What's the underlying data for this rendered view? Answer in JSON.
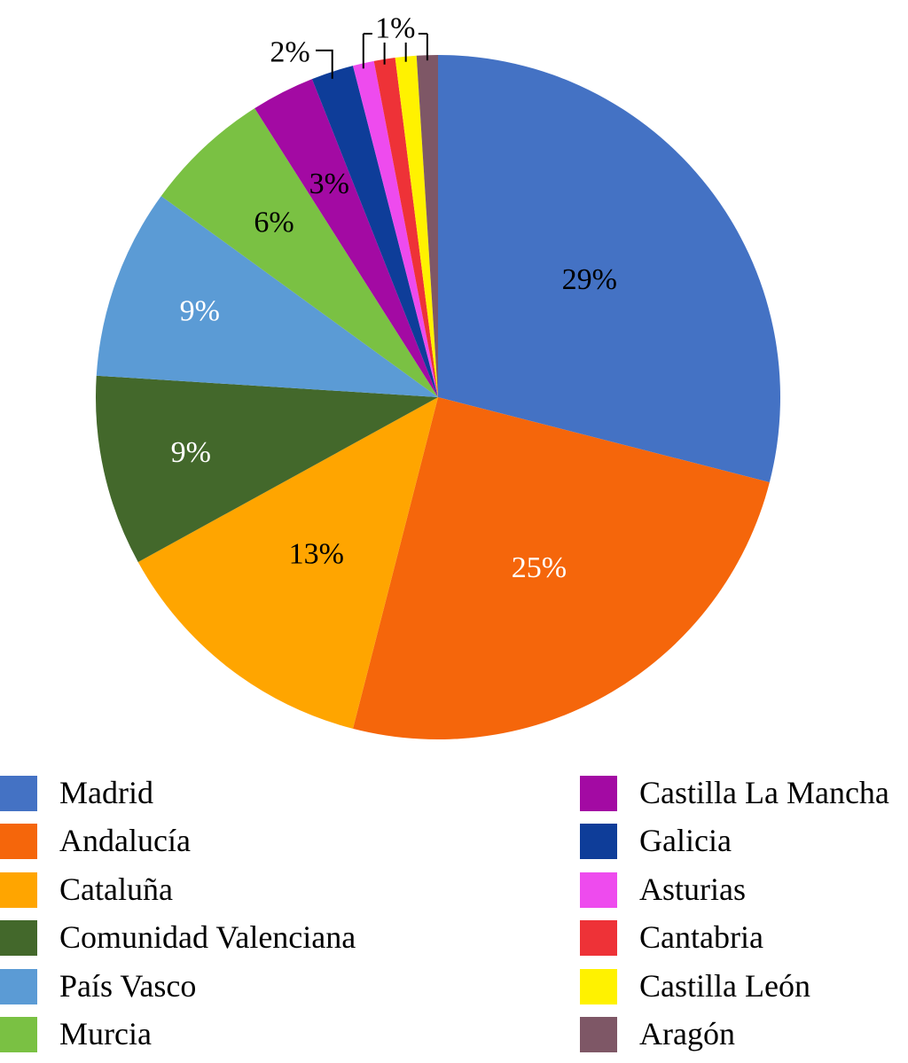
{
  "chart_data": {
    "type": "pie",
    "title": "",
    "slices": [
      {
        "name": "Madrid",
        "value": 29,
        "label": "29%",
        "color": "#4472C4",
        "label_color": "#000000"
      },
      {
        "name": "Andalucía",
        "value": 25,
        "label": "25%",
        "color": "#F5660B",
        "label_color": "#FFFFFF"
      },
      {
        "name": "Cataluña",
        "value": 13,
        "label": "13%",
        "color": "#FFA500",
        "label_color": "#000000"
      },
      {
        "name": "Comunidad Valenciana",
        "value": 9,
        "label": "9%",
        "color": "#43682B",
        "label_color": "#FFFFFF"
      },
      {
        "name": "País Vasco",
        "value": 9,
        "label": "9%",
        "color": "#5B9BD5",
        "label_color": "#FFFFFF"
      },
      {
        "name": "Murcia",
        "value": 6,
        "label": "6%",
        "color": "#7AC143",
        "label_color": "#000000"
      },
      {
        "name": "Castilla La Mancha",
        "value": 3,
        "label": "3%",
        "color": "#A30AA3",
        "label_color": "#000000"
      },
      {
        "name": "Galicia",
        "value": 2,
        "label": "2%",
        "color": "#0E3D99",
        "label_color": "#000000"
      },
      {
        "name": "Asturias",
        "value": 1,
        "label": "",
        "color": "#EE4BEE",
        "label_color": "#000000"
      },
      {
        "name": "Cantabria",
        "value": 1,
        "label": "",
        "color": "#EE3237",
        "label_color": "#000000"
      },
      {
        "name": "Castilla León",
        "value": 1,
        "label": "",
        "color": "#FFF200",
        "label_color": "#000000"
      },
      {
        "name": "Aragón",
        "value": 1,
        "label": "",
        "color": "#7E5766",
        "label_color": "#000000"
      }
    ],
    "group_label": "1%",
    "legend_placement": "bottom"
  },
  "legend": {
    "left": [
      {
        "label": "Madrid",
        "color": "#4472C4"
      },
      {
        "label": "Andalucía",
        "color": "#F5660B"
      },
      {
        "label": "Cataluña",
        "color": "#FFA500"
      },
      {
        "label": "Comunidad Valenciana",
        "color": "#43682B"
      },
      {
        "label": "País Vasco",
        "color": "#5B9BD5"
      },
      {
        "label": "Murcia",
        "color": "#7AC143"
      }
    ],
    "right": [
      {
        "label": "Castilla La Mancha",
        "color": "#A30AA3"
      },
      {
        "label": "Galicia",
        "color": "#0E3D99"
      },
      {
        "label": "Asturias",
        "color": "#EE4BEE"
      },
      {
        "label": "Cantabria",
        "color": "#EE3237"
      },
      {
        "label": "Castilla León",
        "color": "#FFF200"
      },
      {
        "label": "Aragón",
        "color": "#7E5766"
      }
    ]
  }
}
